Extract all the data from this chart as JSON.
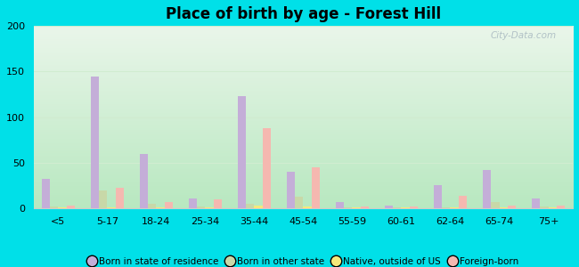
{
  "title": "Place of birth by age - Forest Hill",
  "categories": [
    "<5",
    "5-17",
    "18-24",
    "25-34",
    "35-44",
    "45-54",
    "55-59",
    "60-61",
    "62-64",
    "65-74",
    "75+"
  ],
  "series": {
    "born_in_state": [
      32,
      145,
      60,
      11,
      123,
      40,
      7,
      3,
      25,
      42,
      11
    ],
    "born_other_state": [
      2,
      20,
      5,
      2,
      5,
      13,
      1,
      1,
      1,
      7,
      2
    ],
    "native_outside_us": [
      1,
      1,
      1,
      1,
      3,
      2,
      1,
      1,
      1,
      1,
      1
    ],
    "foreign_born": [
      3,
      22,
      7,
      10,
      88,
      45,
      2,
      2,
      14,
      3,
      3
    ]
  },
  "colors": {
    "born_in_state": "#c4aed8",
    "born_other_state": "#c8d8a8",
    "native_outside_us": "#f5e97a",
    "foreign_born": "#f5b8b0"
  },
  "legend_labels": [
    "Born in state of residence",
    "Born in other state",
    "Native, outside of US",
    "Foreign-born"
  ],
  "ylim": [
    0,
    200
  ],
  "yticks": [
    0,
    50,
    100,
    150,
    200
  ],
  "bg_outer": "#00e0e8",
  "bg_plot_top": "#eaf6ea",
  "bg_plot_bottom": "#b8e8c0",
  "watermark": "City-Data.com",
  "bar_width": 0.17,
  "grid_color": "#d0ecd0"
}
